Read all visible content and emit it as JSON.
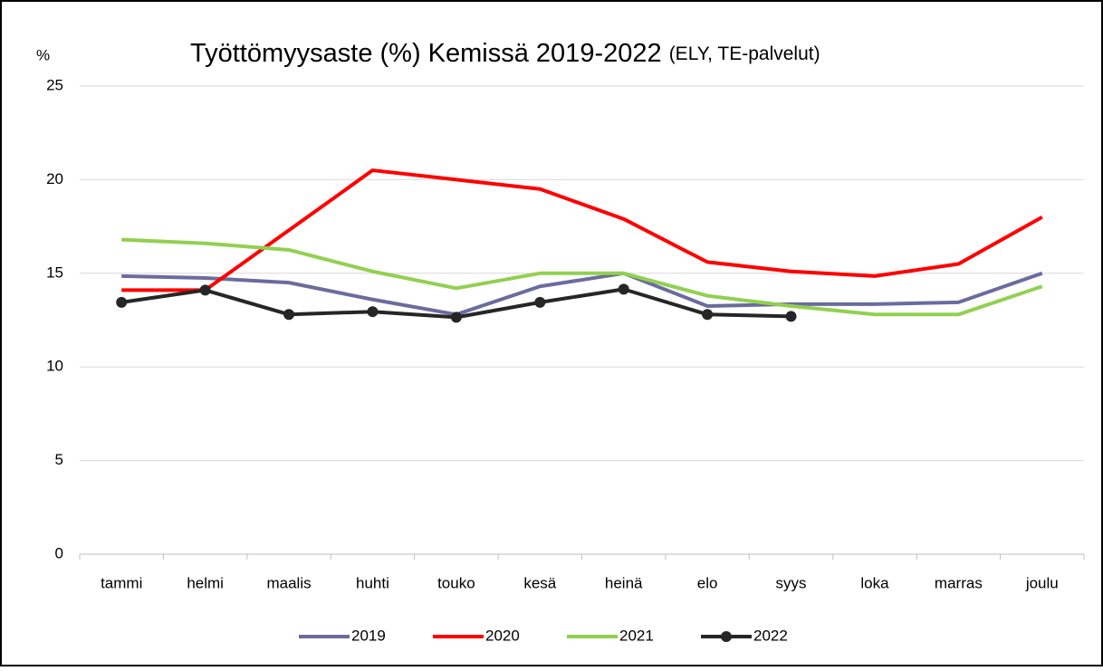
{
  "chart_data": {
    "type": "line",
    "title": "Työttömyysaste (%) Kemissä 2019-2022",
    "subtitle": "(ELY, TE-palvelut)",
    "y_label": "%",
    "categories": [
      "tammi",
      "helmi",
      "maalis",
      "huhti",
      "touko",
      "kesä",
      "heinä",
      "elo",
      "syys",
      "loka",
      "marras",
      "joulu"
    ],
    "series": [
      {
        "name": "2019",
        "color": "#6b6b9e",
        "values": [
          14.85,
          14.75,
          14.5,
          13.6,
          12.8,
          14.3,
          15.0,
          13.25,
          13.35,
          13.35,
          13.45,
          15.0
        ]
      },
      {
        "name": "2020",
        "color": "#ff0000",
        "values": [
          14.1,
          14.1,
          17.3,
          20.5,
          20.0,
          19.5,
          17.9,
          15.6,
          15.1,
          14.85,
          15.5,
          18.0
        ]
      },
      {
        "name": "2021",
        "color": "#92d050",
        "values": [
          16.8,
          16.6,
          16.25,
          15.1,
          14.2,
          15.0,
          15.0,
          13.8,
          13.25,
          12.8,
          12.8,
          14.3
        ]
      },
      {
        "name": "2022",
        "color": "#262626",
        "markers": true,
        "values": [
          13.45,
          14.1,
          12.8,
          12.95,
          12.65,
          13.45,
          14.15,
          12.8,
          12.7,
          null,
          null,
          null
        ]
      }
    ],
    "ylim": [
      0,
      25
    ],
    "yticks": [
      0,
      5,
      10,
      15,
      20,
      25
    ],
    "grid": true,
    "legend": "bottom"
  }
}
